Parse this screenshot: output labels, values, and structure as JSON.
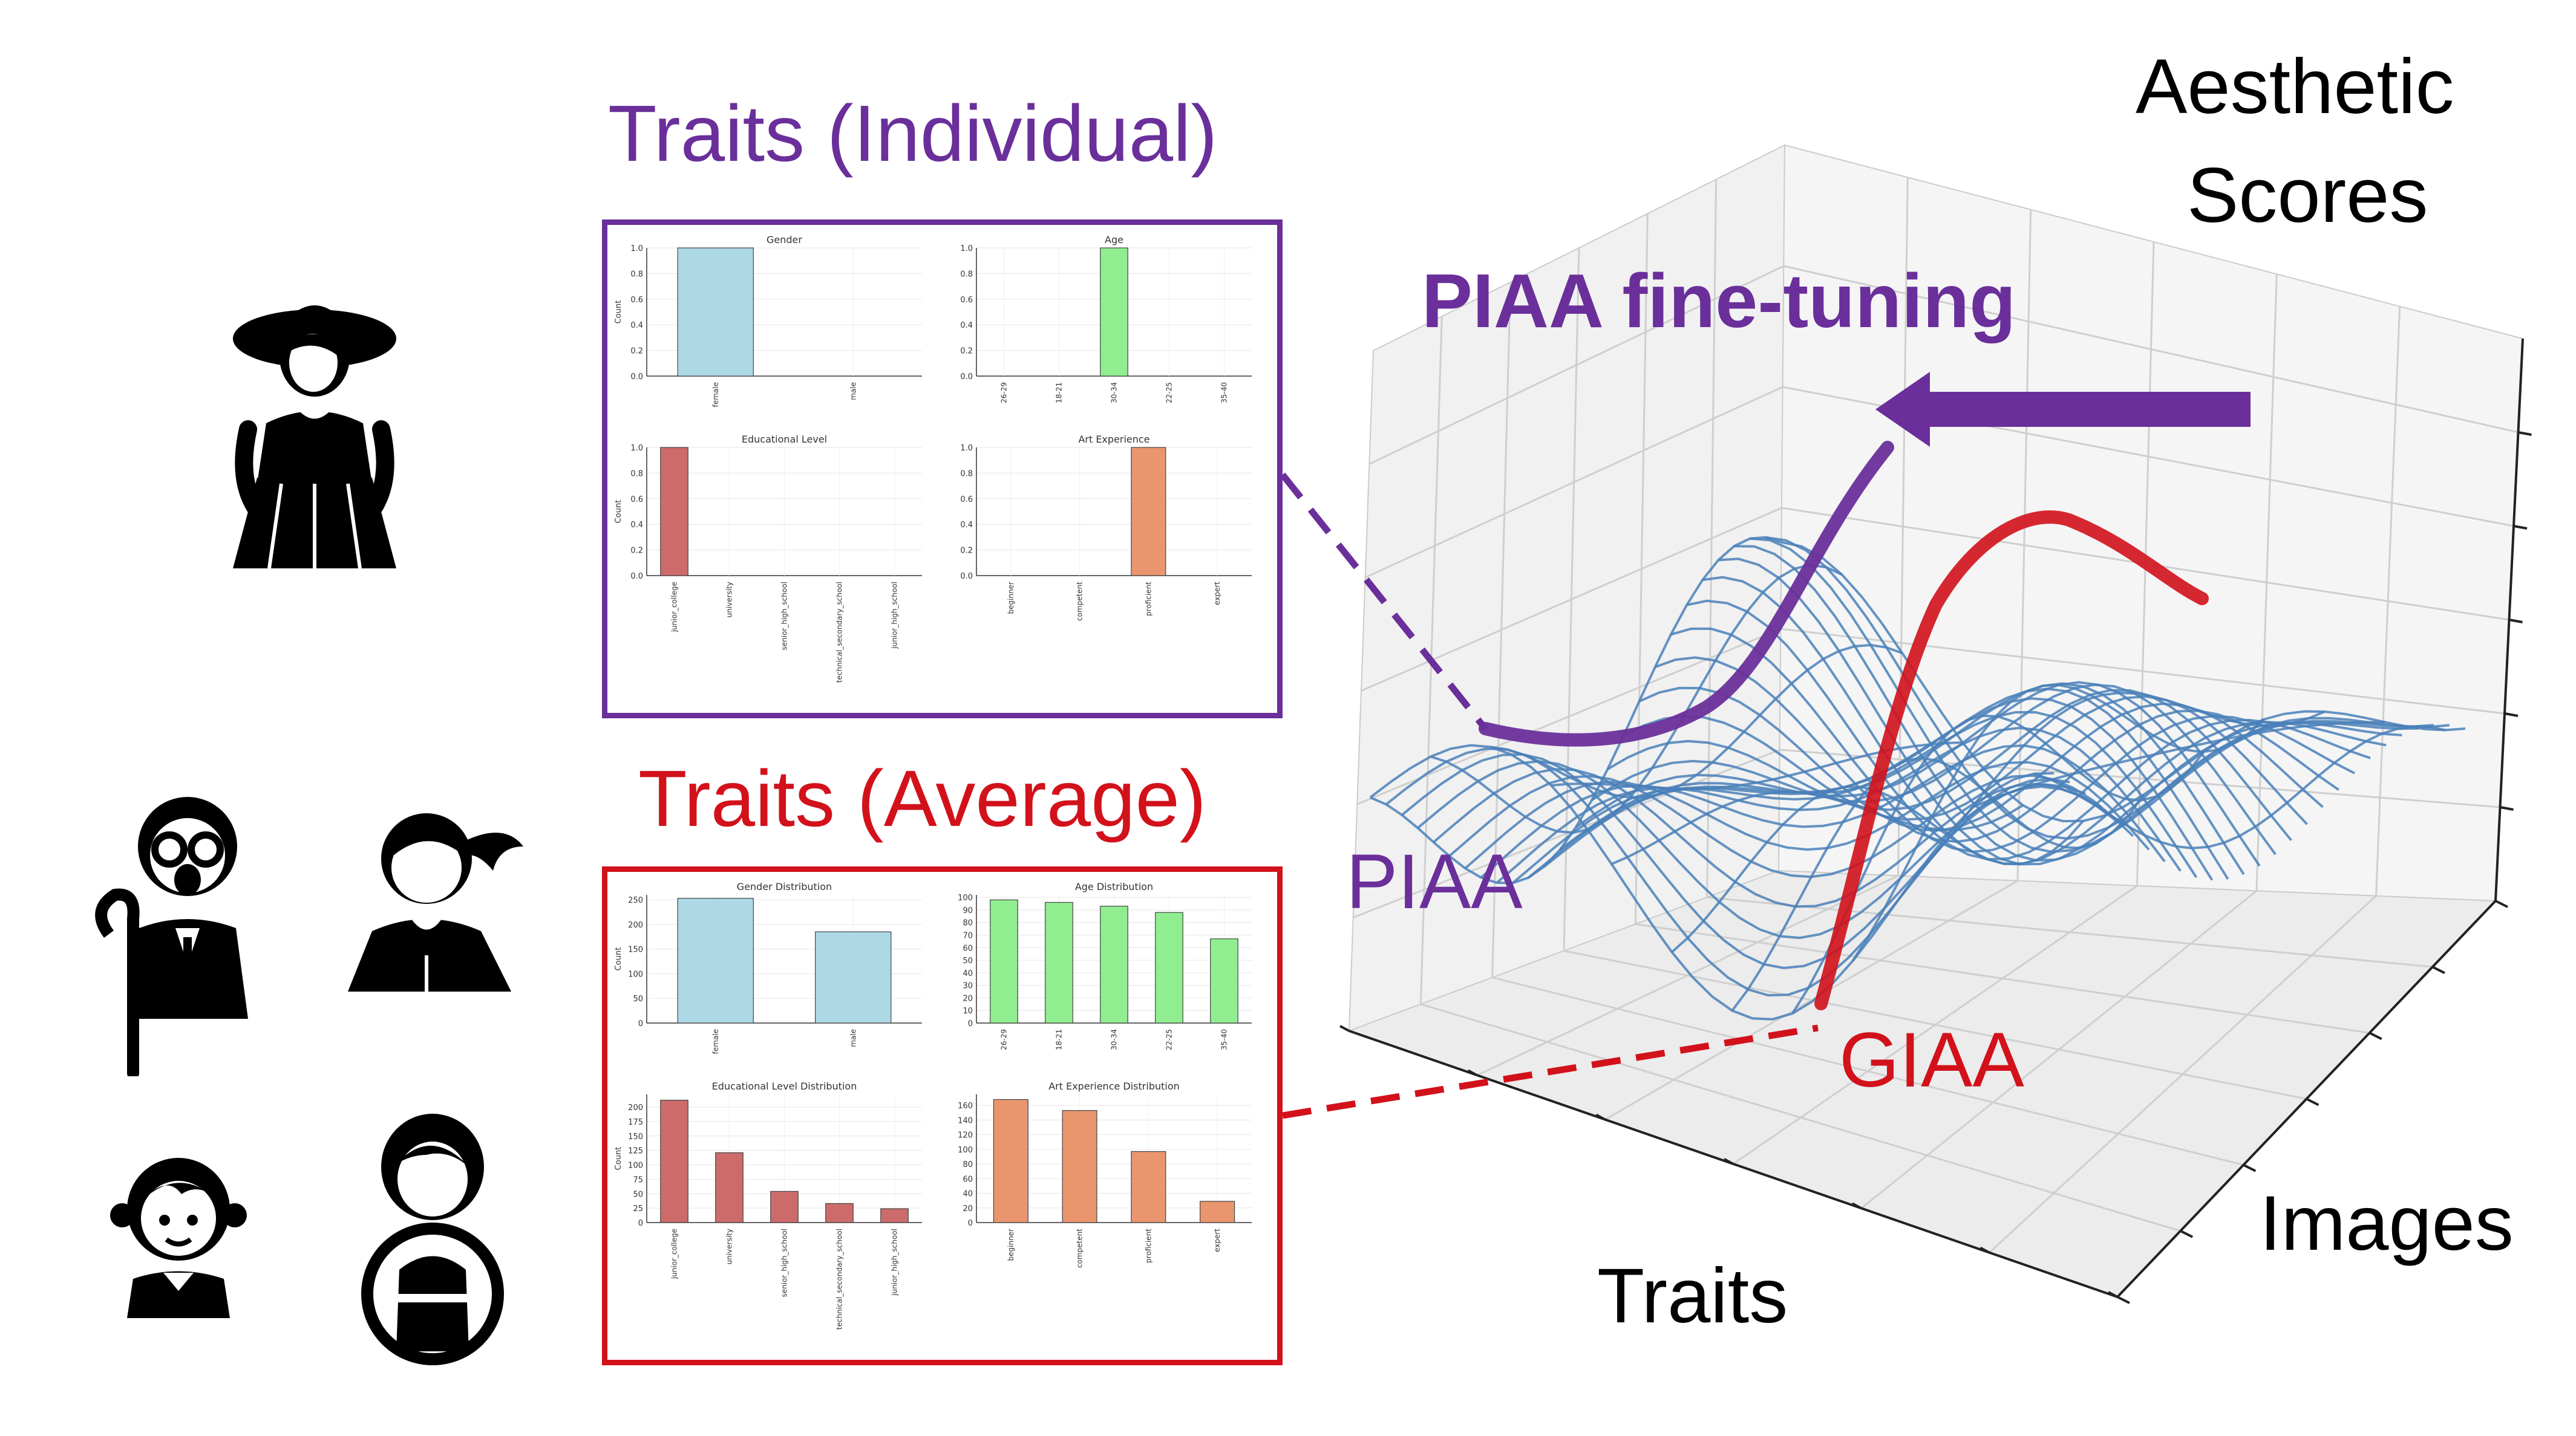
{
  "headers": {
    "individual": "Traits (Individual)",
    "average": "Traits (Average)"
  },
  "plot3d": {
    "z_label_line1": "Aesthetic",
    "z_label_line2": "Scores",
    "x_label": "Traits",
    "y_label": "Images",
    "arrow_label": "PIAA fine-tuning",
    "piaa_label": "PIAA",
    "giaa_label": "GIAA"
  },
  "colors": {
    "purple": "#6a2f9a",
    "red": "#d2111b",
    "mesh": "#4a80b8",
    "gender_bar": "#add8e6",
    "age_bar": "#90ee90",
    "edu_bar": "#cd6b6b",
    "art_bar": "#e9966f"
  },
  "chart_data": [
    {
      "panel": "individual",
      "type": "bar",
      "title": "Gender",
      "ylabel": "Count",
      "categories": [
        "female",
        "male"
      ],
      "values": [
        1.0,
        0.0
      ],
      "ylim": [
        0,
        1.0
      ],
      "yticks": [
        "0.0",
        "0.2",
        "0.4",
        "0.6",
        "0.8",
        "1.0"
      ],
      "color": "#add8e6"
    },
    {
      "panel": "individual",
      "type": "bar",
      "title": "Age",
      "ylabel": "",
      "categories": [
        "26-29",
        "18-21",
        "30-34",
        "22-25",
        "35-40"
      ],
      "values": [
        0,
        0,
        1.0,
        0,
        0
      ],
      "ylim": [
        0,
        1.0
      ],
      "yticks": [
        "0.0",
        "0.2",
        "0.4",
        "0.6",
        "0.8",
        "1.0"
      ],
      "color": "#90ee90"
    },
    {
      "panel": "individual",
      "type": "bar",
      "title": "Educational Level",
      "ylabel": "Count",
      "categories": [
        "junior_college",
        "university",
        "senior_high_school",
        "technical_secondary_school",
        "junior_high_school"
      ],
      "values": [
        1.0,
        0,
        0,
        0,
        0
      ],
      "ylim": [
        0,
        1.0
      ],
      "yticks": [
        "0.0",
        "0.2",
        "0.4",
        "0.6",
        "0.8",
        "1.0"
      ],
      "color": "#cd6b6b"
    },
    {
      "panel": "individual",
      "type": "bar",
      "title": "Art Experience",
      "ylabel": "",
      "categories": [
        "beginner",
        "competent",
        "proficient",
        "expert"
      ],
      "values": [
        0,
        0,
        1.0,
        0
      ],
      "ylim": [
        0,
        1.0
      ],
      "yticks": [
        "0.0",
        "0.2",
        "0.4",
        "0.6",
        "0.8",
        "1.0"
      ],
      "color": "#e9966f"
    },
    {
      "panel": "average",
      "type": "bar",
      "title": "Gender Distribution",
      "ylabel": "Count",
      "categories": [
        "female",
        "male"
      ],
      "values": [
        253,
        185
      ],
      "ylim": [
        0,
        260
      ],
      "yticks": [
        "0",
        "50",
        "100",
        "150",
        "200",
        "250"
      ],
      "color": "#add8e6"
    },
    {
      "panel": "average",
      "type": "bar",
      "title": "Age Distribution",
      "ylabel": "",
      "categories": [
        "26-29",
        "18-21",
        "30-34",
        "22-25",
        "35-40"
      ],
      "values": [
        98,
        96,
        93,
        88,
        67
      ],
      "ylim": [
        0,
        102
      ],
      "yticks": [
        "0",
        "10",
        "20",
        "30",
        "40",
        "50",
        "60",
        "70",
        "80",
        "90",
        "100"
      ],
      "color": "#90ee90"
    },
    {
      "panel": "average",
      "type": "bar",
      "title": "Educational Level Distribution",
      "ylabel": "Count",
      "categories": [
        "junior_college",
        "university",
        "senior_high_school",
        "technical_secondary_school",
        "junior_high_school"
      ],
      "values": [
        212,
        121,
        54,
        33,
        24
      ],
      "ylim": [
        0,
        222
      ],
      "yticks": [
        "0",
        "25",
        "50",
        "75",
        "100",
        "125",
        "150",
        "175",
        "200"
      ],
      "color": "#cd6b6b"
    },
    {
      "panel": "average",
      "type": "bar",
      "title": "Art Experience Distribution",
      "ylabel": "",
      "categories": [
        "beginner",
        "competent",
        "proficient",
        "expert"
      ],
      "values": [
        168,
        153,
        97,
        29
      ],
      "ylim": [
        0,
        175
      ],
      "yticks": [
        "0",
        "20",
        "40",
        "60",
        "80",
        "100",
        "120",
        "140",
        "160"
      ],
      "color": "#e9966f"
    }
  ]
}
